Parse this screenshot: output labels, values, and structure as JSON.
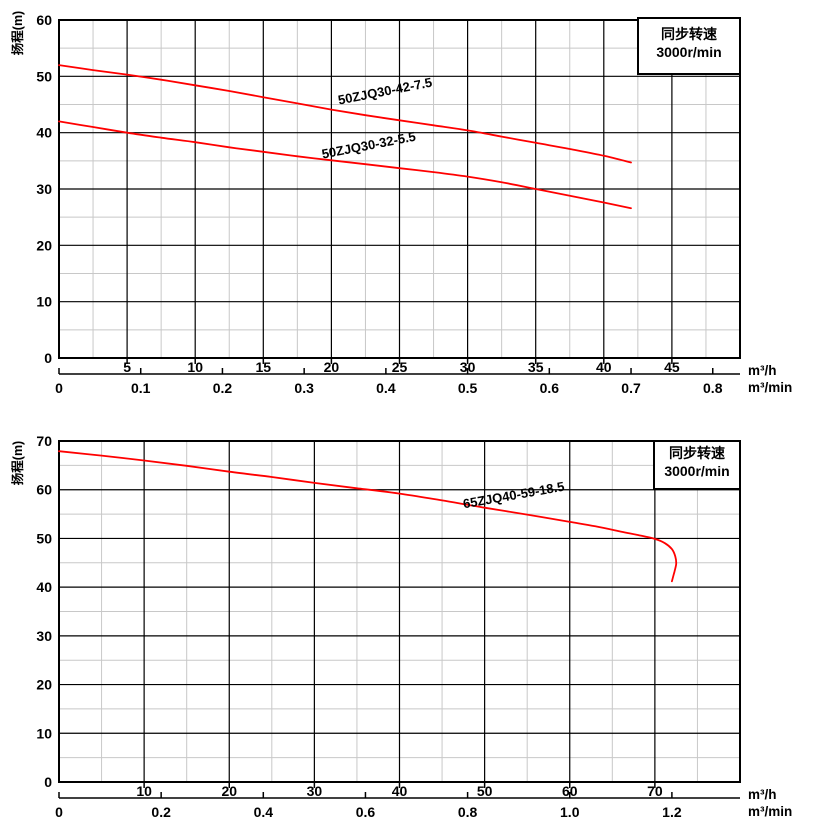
{
  "colors": {
    "curve": "#ff0000",
    "grid_major": "#000000",
    "grid_minor": "#c8c8c8",
    "legend_text": "#1569a7",
    "background": "#ffffff"
  },
  "chart_data": [
    {
      "type": "line",
      "title": "",
      "y_axis_label": "扬程(m)",
      "legend_lines": [
        "同步转速",
        "3000r/min"
      ],
      "unit_labels": [
        "m³/h",
        "m³/min"
      ],
      "grid": "on",
      "legend_position": "top-right-inside",
      "x_axis": {
        "min": 0,
        "max": 50,
        "major": 5,
        "minor": 2.5,
        "tick_labels": [
          "5",
          "10",
          "15",
          "20",
          "25",
          "30",
          "35",
          "40",
          "45"
        ],
        "tick_values": [
          5,
          10,
          15,
          20,
          25,
          30,
          35,
          40,
          45
        ]
      },
      "y_axis": {
        "min": 0,
        "max": 60,
        "major": 10,
        "minor": 5,
        "tick_labels": [
          "0",
          "10",
          "20",
          "30",
          "40",
          "50",
          "60"
        ],
        "tick_values": [
          0,
          10,
          20,
          30,
          40,
          50,
          60
        ]
      },
      "secondary_x_axis": {
        "unit": "m³/min",
        "tick_labels": [
          "0",
          "0.1",
          "0.2",
          "0.3",
          "0.4",
          "0.5",
          "0.6",
          "0.7",
          "0.8"
        ],
        "positions_in_primary_units": [
          0,
          6,
          12,
          18,
          24,
          30,
          36,
          42,
          48
        ]
      },
      "series": [
        {
          "name": "50ZJQ30-42-7.5",
          "label_at": [
            24,
            46.6
          ],
          "label_angle": -11,
          "points": [
            [
              0,
              52
            ],
            [
              2.5,
              51.1
            ],
            [
              5,
              50.3
            ],
            [
              7.5,
              49.4
            ],
            [
              10,
              48.4
            ],
            [
              12.5,
              47.4
            ],
            [
              15,
              46.3
            ],
            [
              17.5,
              45.2
            ],
            [
              20,
              44.1
            ],
            [
              22.5,
              43.1
            ],
            [
              25,
              42.2
            ],
            [
              27.5,
              41.3
            ],
            [
              30,
              40.4
            ],
            [
              32.5,
              39.3
            ],
            [
              35,
              38.2
            ],
            [
              37.5,
              37.1
            ],
            [
              40,
              35.9
            ],
            [
              42,
              34.7
            ]
          ]
        },
        {
          "name": "50ZJQ30-32-5.5",
          "label_at": [
            22.8,
            37.0
          ],
          "label_angle": -11,
          "points": [
            [
              0,
              42
            ],
            [
              2.5,
              41
            ],
            [
              5,
              40
            ],
            [
              7.5,
              39.1
            ],
            [
              10,
              38.3
            ],
            [
              12.5,
              37.4
            ],
            [
              15,
              36.6
            ],
            [
              17.5,
              35.8
            ],
            [
              20,
              35.1
            ],
            [
              22.5,
              34.4
            ],
            [
              25,
              33.7
            ],
            [
              27.5,
              33
            ],
            [
              30,
              32.2
            ],
            [
              32.5,
              31.2
            ],
            [
              35,
              30
            ],
            [
              37.5,
              28.8
            ],
            [
              40,
              27.6
            ],
            [
              42,
              26.6
            ]
          ]
        }
      ]
    },
    {
      "type": "line",
      "title": "",
      "y_axis_label": "扬程(m)",
      "legend_lines": [
        "同步转速",
        "3000r/min"
      ],
      "unit_labels": [
        "m³/h",
        "m³/min"
      ],
      "grid": "on",
      "legend_position": "top-right-inside",
      "x_axis": {
        "min": 0,
        "max": 80,
        "major": 10,
        "minor": 5,
        "tick_labels": [
          "10",
          "20",
          "30",
          "40",
          "50",
          "60",
          "70"
        ],
        "tick_values": [
          10,
          20,
          30,
          40,
          50,
          60,
          70
        ]
      },
      "y_axis": {
        "min": 0,
        "max": 70,
        "major": 10,
        "minor": 5,
        "tick_labels": [
          "0",
          "10",
          "20",
          "30",
          "40",
          "50",
          "60",
          "70"
        ],
        "tick_values": [
          0,
          10,
          20,
          30,
          40,
          50,
          60,
          70
        ]
      },
      "secondary_x_axis": {
        "unit": "m³/min",
        "tick_labels": [
          "0",
          "0.2",
          "0.4",
          "0.6",
          "0.8",
          "1.0",
          "1.2"
        ],
        "positions_in_primary_units": [
          0,
          12,
          24,
          36,
          48,
          60,
          72
        ]
      },
      "series": [
        {
          "name": "65ZJQ40-59-18.5",
          "label_at": [
            53.5,
            58.0
          ],
          "label_angle": -10,
          "points": [
            [
              0,
              67.9
            ],
            [
              5,
              67
            ],
            [
              10,
              66
            ],
            [
              15,
              64.9
            ],
            [
              20,
              63.7
            ],
            [
              25,
              62.6
            ],
            [
              30,
              61.4
            ],
            [
              35,
              60.3
            ],
            [
              40,
              59.2
            ],
            [
              45,
              57.8
            ],
            [
              50,
              56.3
            ],
            [
              55,
              54.9
            ],
            [
              60,
              53.4
            ],
            [
              63,
              52.5
            ],
            [
              66,
              51.4
            ],
            [
              68,
              50.7
            ],
            [
              70,
              49.9
            ],
            [
              71.2,
              49
            ],
            [
              72,
              47.8
            ],
            [
              72.4,
              46.3
            ],
            [
              72.5,
              44.8
            ],
            [
              72.3,
              43.2
            ],
            [
              72,
              41.2
            ]
          ]
        }
      ]
    }
  ]
}
